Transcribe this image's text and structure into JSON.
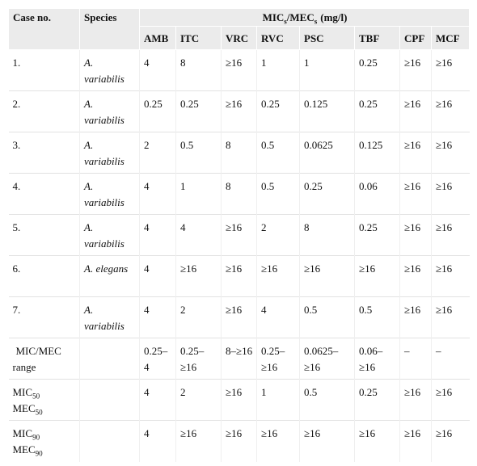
{
  "table": {
    "header": {
      "case": "Case no.",
      "species": "Species",
      "group": [
        {
          "t": "MIC",
          "sub": "s"
        },
        {
          "t": "/MEC",
          "sub": "s"
        },
        {
          "t": "(mg/l)"
        }
      ],
      "drugs": [
        "AMB",
        "ITC",
        "VRC",
        "RVC",
        "PSC",
        "TBF",
        "CPF",
        "MCF"
      ]
    },
    "rows": [
      {
        "case": "1.",
        "species": "A. variabilis",
        "values": [
          "4",
          "8",
          "≥16",
          "1",
          "1",
          "0.25",
          "≥16",
          "≥16"
        ]
      },
      {
        "case": "2.",
        "species": "A. variabilis",
        "values": [
          "0.25",
          "0.25",
          "≥16",
          "0.25",
          "0.125",
          "0.25",
          "≥16",
          "≥16"
        ]
      },
      {
        "case": "3.",
        "species": "A. variabilis",
        "values": [
          "2",
          "0.5",
          "8",
          "0.5",
          "0.0625",
          "0.125",
          "≥16",
          "≥16"
        ]
      },
      {
        "case": "4.",
        "species": "A. variabilis",
        "values": [
          "4",
          "1",
          "8",
          "0.5",
          "0.25",
          "0.06",
          "≥16",
          "≥16"
        ]
      },
      {
        "case": "5.",
        "species": "A. variabilis",
        "values": [
          "4",
          "4",
          "≥16",
          "2",
          "8",
          "0.25",
          "≥16",
          "≥16"
        ]
      },
      {
        "case": "6.",
        "species": "A. elegans",
        "values": [
          "4",
          "≥16",
          "≥16",
          "≥16",
          "≥16",
          "≥16",
          "≥16",
          "≥16"
        ]
      },
      {
        "case": "7.",
        "species": "A. variabilis",
        "values": [
          "4",
          "2",
          "≥16",
          "4",
          "0.5",
          "0.5",
          "≥16",
          "≥16"
        ]
      }
    ],
    "summary": [
      {
        "label": [
          {
            "t": "MIC/MEC range"
          }
        ],
        "values": [
          "0.25–4",
          "0.25–≥16",
          "8–≥16",
          "0.25–≥16",
          "0.0625–≥16",
          "0.06–≥16",
          "–",
          "–"
        ]
      },
      {
        "label": [
          {
            "t": "MIC",
            "sub": "50"
          },
          {
            "t": "MEC",
            "sub": "50"
          }
        ],
        "values": [
          "4",
          "2",
          "≥16",
          "1",
          "0.5",
          "0.25",
          "≥16",
          "≥16"
        ]
      },
      {
        "label": [
          {
            "t": "MIC",
            "sub": "90"
          },
          {
            "t": "MEC",
            "sub": "90"
          }
        ],
        "values": [
          "4",
          "≥16",
          "≥16",
          "≥16",
          "≥16",
          "≥16",
          "≥16",
          "≥16"
        ]
      }
    ]
  }
}
